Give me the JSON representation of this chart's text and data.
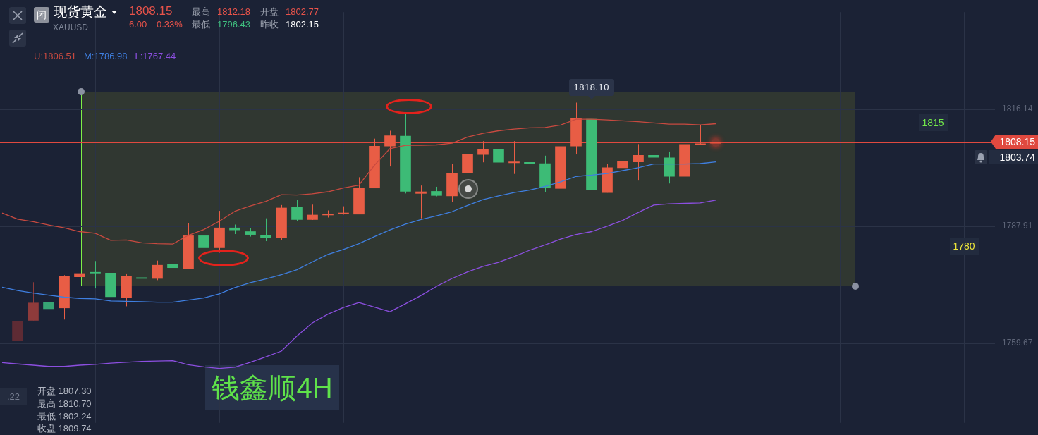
{
  "chart_data": {
    "type": "candlestick",
    "title": "现货黄金",
    "subtitle": "XAUUSD",
    "categories": [
      null,
      null,
      null,
      null,
      null,
      null,
      null,
      null,
      null,
      null,
      null,
      null,
      null,
      null,
      null,
      null,
      null,
      null,
      null,
      null,
      null,
      null,
      null,
      null,
      null,
      null,
      null,
      null,
      null,
      null,
      null,
      null,
      null,
      null,
      null,
      null,
      null,
      null,
      null,
      null,
      null,
      null,
      null,
      null,
      null,
      null,
      null,
      null,
      null,
      null,
      null,
      null,
      null,
      null,
      null,
      null,
      null,
      null,
      null,
      null,
      null,
      null,
      null,
      null,
      null
    ],
    "ohlc": [
      null,
      [
        1760.3,
        1767.5,
        1755.2,
        1765.0
      ],
      [
        1765.2,
        1774.4,
        1765.2,
        1769.4
      ],
      [
        1769.5,
        1770.3,
        1767.6,
        1768.0
      ],
      [
        1768.2,
        1776.1,
        1765.4,
        1775.8
      ],
      [
        1775.7,
        1778.8,
        1772.9,
        1776.5
      ],
      [
        1776.8,
        1779.5,
        1772.9,
        1776.6
      ],
      [
        1776.6,
        1782.7,
        1768.4,
        1770.9
      ],
      [
        1770.7,
        1776.5,
        1768.6,
        1775.8
      ],
      [
        1775.5,
        1777.2,
        1774.9,
        1775.3
      ],
      [
        1775.3,
        1779.6,
        1774.9,
        1778.5
      ],
      [
        1778.7,
        1779.6,
        1774.3,
        1777.9
      ],
      [
        1777.7,
        1788.7,
        1777.7,
        1785.6
      ],
      [
        1785.6,
        1795.0,
        1776.0,
        1782.7
      ],
      [
        1782.7,
        1791.6,
        1781.5,
        1787.5
      ],
      [
        1787.5,
        1788.3,
        1786.0,
        1787.0
      ],
      [
        1786.6,
        1787.5,
        1785.4,
        1785.9
      ],
      [
        1785.7,
        1789.8,
        1784.3,
        1785.1
      ],
      [
        1785.1,
        1793.0,
        1784.5,
        1792.3
      ],
      [
        1792.5,
        1794.2,
        1789.1,
        1789.5
      ],
      [
        1789.5,
        1793.1,
        1789.4,
        1790.6
      ],
      [
        1790.6,
        1791.7,
        1790.0,
        1790.8
      ],
      [
        1790.9,
        1792.7,
        1790.7,
        1791.1
      ],
      [
        1790.8,
        1799.7,
        1790.8,
        1797.1
      ],
      [
        1797.1,
        1809.0,
        1797.1,
        1807.2
      ],
      [
        1807.2,
        1810.9,
        1802.3,
        1809.7
      ],
      [
        1809.6,
        1815.0,
        1795.8,
        1796.3
      ],
      [
        1795.8,
        1797.7,
        1789.8,
        1796.2
      ],
      [
        1796.3,
        1797.4,
        1795.1,
        1795.3
      ],
      [
        1795.2,
        1802.9,
        1793.8,
        1800.7
      ],
      [
        1800.8,
        1806.6,
        1798.6,
        1805.2
      ],
      [
        1805.2,
        1808.4,
        1803.3,
        1806.4
      ],
      [
        1806.4,
        1809.7,
        1796.8,
        1803.3
      ],
      [
        1803.2,
        1808.4,
        1800.5,
        1803.4
      ],
      [
        1803.3,
        1805.5,
        1802.3,
        1803.0
      ],
      [
        1803.0,
        1804.9,
        1796.2,
        1797.1
      ],
      [
        1797.0,
        1811.1,
        1796.2,
        1807.1
      ],
      [
        1807.2,
        1817.7,
        1805.2,
        1813.9
      ],
      [
        1813.7,
        1818.1,
        1794.6,
        1796.6
      ],
      [
        1796.0,
        1802.9,
        1796.0,
        1802.0
      ],
      [
        1802.0,
        1804.5,
        1801.6,
        1803.6
      ],
      [
        1803.4,
        1807.7,
        1798.9,
        1805.0
      ],
      [
        1805.0,
        1805.8,
        1796.5,
        1804.5
      ],
      [
        1804.4,
        1805.9,
        1798.2,
        1799.9
      ],
      [
        1799.9,
        1811.4,
        1798.5,
        1807.6
      ],
      [
        1807.6,
        1812.2,
        1807.6,
        1807.8
      ],
      [
        1807.9,
        1808.8,
        1807.9,
        1808.15
      ],
      null,
      null,
      null,
      null,
      null,
      null,
      null,
      null,
      null,
      null,
      null,
      null,
      null,
      null,
      null,
      null,
      null,
      null
    ],
    "colors": [
      null,
      "#5e2b34",
      "#8e3b3b",
      "#37a574",
      "#e85d45",
      "#e85d45",
      "#3dbb76",
      "#3dbb76",
      "#e85d45",
      "#3dbb76",
      "#e85d45",
      "#3dbb76",
      "#e85d45",
      "#3dbb76",
      "#e85d45",
      "#3dbb76",
      "#3dbb76",
      "#3dbb76",
      "#e85d45",
      "#3dbb76",
      "#e85d45",
      "#e85d45",
      "#e85d45",
      "#e85d45",
      "#e85d45",
      "#e85d45",
      "#3dbb76",
      "#e85d45",
      "#3dbb76",
      "#e85d45",
      "#e85d45",
      "#e85d45",
      "#3dbb76",
      "#e85d45",
      "#3dbb76",
      "#3dbb76",
      "#e85d45",
      "#e85d45",
      "#3dbb76",
      "#e85d45",
      "#e85d45",
      "#e85d45",
      "#3dbb76",
      "#3dbb76",
      "#e85d45",
      "#e85d45",
      "#e85d45",
      null,
      null,
      null,
      null,
      null,
      null,
      null,
      null,
      null,
      null,
      null,
      null,
      null,
      null,
      null,
      null,
      null,
      null
    ],
    "series": [
      {
        "type": "line",
        "name": "U:1806.51",
        "color": "#c84a40",
        "values": [
          1791.1,
          1789.6,
          1789.0,
          1788.2,
          1787.5,
          1786.6,
          1786.2,
          1784.5,
          1784.6,
          1783.9,
          1783.7,
          1783.6,
          1785.7,
          1787.1,
          1789.1,
          1791.5,
          1792.8,
          1793.9,
          1795.5,
          1795.4,
          1795.7,
          1796.2,
          1797.1,
          1797.8,
          1802.6,
          1806.6,
          1807.4,
          1807.4,
          1807.5,
          1807.9,
          1809.4,
          1810.3,
          1810.9,
          1811.3,
          1811.6,
          1811.7,
          1812.3,
          1813.7,
          1813.7,
          1813.5,
          1813.3,
          1813.1,
          1812.8,
          1812.5,
          1812.5,
          1812.3,
          1812.6,
          null,
          null,
          null,
          null,
          null,
          null,
          null,
          null,
          null,
          null,
          null,
          null,
          null,
          null,
          null,
          null,
          null,
          null
        ]
      },
      {
        "type": "line",
        "name": "M:1786.98",
        "color": "#3f7fe0",
        "values": [
          1773.2,
          1772.4,
          1771.8,
          1771.3,
          1770.8,
          1770.5,
          1770.4,
          1769.9,
          1769.8,
          1769.7,
          1769.6,
          1769.6,
          1770.1,
          1770.6,
          1771.6,
          1773.1,
          1774.3,
          1775.2,
          1776.2,
          1777.4,
          1779.3,
          1781.1,
          1782.3,
          1783.7,
          1785.4,
          1787.0,
          1788.4,
          1789.5,
          1790.4,
          1791.4,
          1792.9,
          1794.3,
          1795.2,
          1796.0,
          1796.6,
          1797.5,
          1798.6,
          1799.9,
          1800.2,
          1800.6,
          1801.3,
          1802.0,
          1802.9,
          1802.9,
          1802.9,
          1803.0,
          1803.4,
          null,
          null,
          null,
          null,
          null,
          null,
          null,
          null,
          null,
          null,
          null,
          null,
          null,
          null,
          null,
          null,
          null,
          null
        ]
      },
      {
        "type": "line",
        "name": "L:1767.44",
        "color": "#8c4fe0",
        "values": [
          1755.0,
          1754.7,
          1754.4,
          1754.1,
          1754.1,
          1754.4,
          1754.6,
          1754.9,
          1755.1,
          1755.3,
          1755.4,
          1755.5,
          1754.5,
          1754.0,
          1753.6,
          1753.9,
          1755.1,
          1756.4,
          1757.8,
          1761.4,
          1764.6,
          1766.7,
          1768.3,
          1769.5,
          1768.4,
          1767.3,
          1769.2,
          1771.2,
          1773.4,
          1775.3,
          1776.9,
          1778.2,
          1779.2,
          1780.6,
          1782.1,
          1783.4,
          1784.8,
          1785.9,
          1786.6,
          1787.9,
          1789.3,
          1791.2,
          1793.0,
          1793.3,
          1793.4,
          1793.5,
          1794.2,
          null,
          null,
          null,
          null,
          null,
          null,
          null,
          null,
          null,
          null,
          null,
          null,
          null,
          null,
          null,
          null,
          null,
          null
        ]
      }
    ],
    "ylim": [
      1740.5,
      1839.5
    ],
    "yticks": [
      1759.67,
      1787.91,
      1816.14
    ],
    "ref_lines": [
      {
        "axis": "y",
        "value": 1815,
        "label": "1815",
        "color": "#72e84a"
      },
      {
        "axis": "y",
        "value": 1780,
        "label": "1780",
        "color": "#ece53a"
      },
      {
        "axis": "y",
        "value": 1808.15,
        "label": "1808.15",
        "color": "#e0493f"
      }
    ],
    "annotations": [
      "闭",
      "1808.15",
      "6.00",
      "0.33%",
      "最高",
      "1812.18",
      "开盘",
      "1802.77",
      "最低",
      "1796.43",
      "昨收",
      "1802.15",
      "开盘 1807.30",
      "最高 1810.70",
      "最低 1802.24",
      "收盘 1809.74",
      "钱鑫顺4H",
      ".22",
      {
        "text": "1818.10",
        "y": 1818.1
      },
      "1803.74"
    ],
    "legend": "top left",
    "grid": true,
    "tick_labels": "y"
  }
}
